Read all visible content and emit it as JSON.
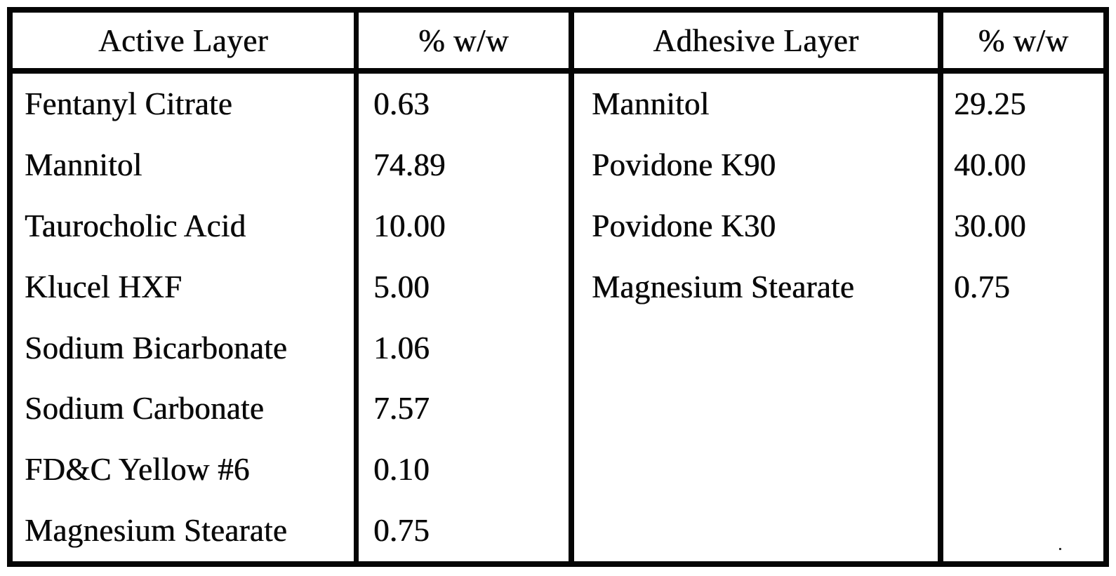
{
  "table": {
    "active": {
      "header": "Active Layer",
      "value_header": "% w/w",
      "rows": [
        {
          "name": "Fentanyl Citrate",
          "value": "0.63"
        },
        {
          "name": "Mannitol",
          "value": "74.89"
        },
        {
          "name": "Taurocholic Acid",
          "value": "10.00"
        },
        {
          "name": "Klucel HXF",
          "value": "5.00"
        },
        {
          "name": "Sodium Bicarbonate",
          "value": "1.06"
        },
        {
          "name": "Sodium Carbonate",
          "value": "7.57"
        },
        {
          "name": "FD&C Yellow #6",
          "value": "0.10"
        },
        {
          "name": "Magnesium Stearate",
          "value": "0.75"
        }
      ]
    },
    "adhesive": {
      "header": "Adhesive Layer",
      "value_header": "% w/w",
      "rows": [
        {
          "name": "Mannitol",
          "value": "29.25"
        },
        {
          "name": "Povidone K90",
          "value": "40.00"
        },
        {
          "name": "Povidone K30",
          "value": "30.00"
        },
        {
          "name": "Magnesium Stearate",
          "value": "0.75"
        }
      ]
    }
  },
  "colors": {
    "ink": "#050505",
    "paper": "#ffffff"
  }
}
